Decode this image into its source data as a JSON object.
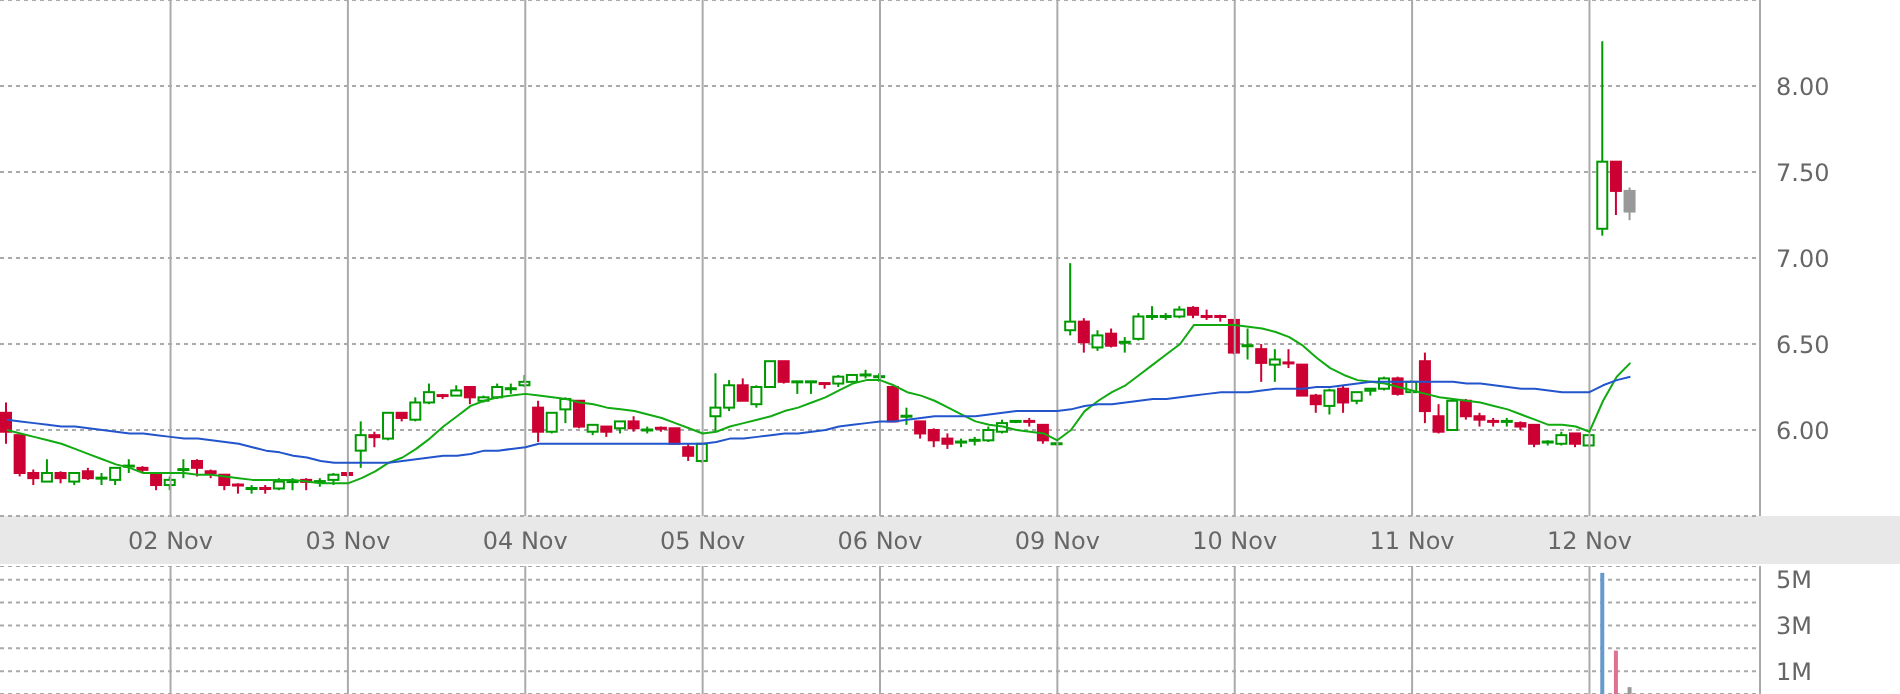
{
  "chart_data": [
    {
      "type": "candlestick",
      "grid": true,
      "categories": [
        null,
        null,
        null,
        null,
        null,
        null,
        null,
        null,
        null,
        null,
        null,
        null,
        "02 Nov",
        null,
        null,
        null,
        null,
        null,
        null,
        null,
        null,
        null,
        null,
        null,
        null,
        "03 Nov",
        null,
        null,
        null,
        null,
        null,
        null,
        null,
        null,
        null,
        null,
        null,
        null,
        "04 Nov",
        null,
        null,
        null,
        null,
        null,
        null,
        null,
        null,
        null,
        null,
        null,
        null,
        "05 Nov",
        null,
        null,
        null,
        null,
        null,
        null,
        null,
        null,
        null,
        null,
        null,
        null,
        "06 Nov",
        null,
        null,
        null,
        null,
        null,
        null,
        null,
        null,
        null,
        null,
        null,
        null,
        "09 Nov",
        null,
        null,
        null,
        null,
        null,
        null,
        null,
        null,
        null,
        null,
        null,
        null,
        "10 Nov",
        null,
        null,
        null,
        null,
        null,
        null,
        null,
        null,
        null,
        null,
        null,
        null,
        "11 Nov",
        null,
        null,
        null,
        null,
        null,
        null,
        null,
        null,
        null,
        null,
        null,
        null,
        "12 Nov",
        null,
        null,
        null,
        null,
        null,
        null,
        null,
        null,
        null,
        null,
        null,
        null
      ],
      "ohlc": [
        [
          6.1,
          6.16,
          5.92,
          5.99
        ],
        [
          5.97,
          5.97,
          5.73,
          5.75
        ],
        [
          5.75,
          5.77,
          5.68,
          5.72
        ],
        [
          5.7,
          5.83,
          5.7,
          5.75
        ],
        [
          5.75,
          5.76,
          5.69,
          5.72
        ],
        [
          5.7,
          5.75,
          5.68,
          5.75
        ],
        [
          5.76,
          5.78,
          5.71,
          5.72
        ],
        [
          5.72,
          5.75,
          5.68,
          5.72
        ],
        [
          5.71,
          5.78,
          5.68,
          5.78
        ],
        [
          5.79,
          5.83,
          5.75,
          5.79
        ],
        [
          5.78,
          5.79,
          5.75,
          5.77
        ],
        [
          5.75,
          5.75,
          5.65,
          5.68
        ],
        [
          5.68,
          5.73,
          5.65,
          5.71
        ],
        [
          5.77,
          5.83,
          5.72,
          5.77
        ],
        [
          5.82,
          5.83,
          5.73,
          5.78
        ],
        [
          5.76,
          5.77,
          5.72,
          5.75
        ],
        [
          5.74,
          5.74,
          5.65,
          5.68
        ],
        [
          5.68,
          5.69,
          5.63,
          5.68
        ],
        [
          5.66,
          5.68,
          5.63,
          5.66
        ],
        [
          5.66,
          5.68,
          5.63,
          5.66
        ],
        [
          5.66,
          5.72,
          5.65,
          5.7
        ],
        [
          5.7,
          5.72,
          5.65,
          5.7
        ],
        [
          5.71,
          5.72,
          5.65,
          5.7
        ],
        [
          5.7,
          5.72,
          5.67,
          5.7
        ],
        [
          5.71,
          5.75,
          5.68,
          5.74
        ],
        [
          5.75,
          5.75,
          5.73,
          5.74
        ],
        [
          5.88,
          6.05,
          5.78,
          5.97
        ],
        [
          5.97,
          5.99,
          5.9,
          5.96
        ],
        [
          5.95,
          6.1,
          5.94,
          6.1
        ],
        [
          6.1,
          6.1,
          6.05,
          6.07
        ],
        [
          6.06,
          6.19,
          6.05,
          6.16
        ],
        [
          6.16,
          6.27,
          6.15,
          6.22
        ],
        [
          6.2,
          6.21,
          6.18,
          6.2
        ],
        [
          6.2,
          6.26,
          6.2,
          6.23
        ],
        [
          6.25,
          6.25,
          6.15,
          6.19
        ],
        [
          6.17,
          6.2,
          6.16,
          6.19
        ],
        [
          6.19,
          6.27,
          6.18,
          6.25
        ],
        [
          6.24,
          6.27,
          6.21,
          6.24
        ],
        [
          6.26,
          6.32,
          6.25,
          6.28
        ],
        [
          6.13,
          6.17,
          5.93,
          5.99
        ],
        [
          5.99,
          6.1,
          5.98,
          6.1
        ],
        [
          6.12,
          6.19,
          6.04,
          6.18
        ],
        [
          6.17,
          6.17,
          6.01,
          6.02
        ],
        [
          5.99,
          6.03,
          5.97,
          6.03
        ],
        [
          6.02,
          6.02,
          5.96,
          5.99
        ],
        [
          6.01,
          6.05,
          5.98,
          6.05
        ],
        [
          6.05,
          6.08,
          5.99,
          6.01
        ],
        [
          6.0,
          6.02,
          5.98,
          6.0
        ],
        [
          6.01,
          6.02,
          5.99,
          6.01
        ],
        [
          6.01,
          6.01,
          5.92,
          5.92
        ],
        [
          5.9,
          5.92,
          5.82,
          5.85
        ],
        [
          5.82,
          5.92,
          5.81,
          5.92
        ],
        [
          6.08,
          6.33,
          5.99,
          6.13
        ],
        [
          6.13,
          6.29,
          6.11,
          6.26
        ],
        [
          6.26,
          6.3,
          6.17,
          6.17
        ],
        [
          6.15,
          6.26,
          6.13,
          6.25
        ],
        [
          6.25,
          6.4,
          6.25,
          6.4
        ],
        [
          6.4,
          6.4,
          6.27,
          6.28
        ],
        [
          6.28,
          6.28,
          6.21,
          6.28
        ],
        [
          6.28,
          6.28,
          6.21,
          6.28
        ],
        [
          6.27,
          6.27,
          6.24,
          6.27
        ],
        [
          6.27,
          6.32,
          6.25,
          6.31
        ],
        [
          6.28,
          6.32,
          6.28,
          6.32
        ],
        [
          6.32,
          6.35,
          6.3,
          6.32
        ],
        [
          6.31,
          6.33,
          6.28,
          6.31
        ],
        [
          6.25,
          6.25,
          6.05,
          6.05
        ],
        [
          6.08,
          6.13,
          6.03,
          6.08
        ],
        [
          6.05,
          6.05,
          5.95,
          5.98
        ],
        [
          6.0,
          6.01,
          5.9,
          5.94
        ],
        [
          5.95,
          5.98,
          5.89,
          5.92
        ],
        [
          5.93,
          5.95,
          5.9,
          5.93
        ],
        [
          5.94,
          5.96,
          5.91,
          5.94
        ],
        [
          5.94,
          6.02,
          5.93,
          6.0
        ],
        [
          5.99,
          6.06,
          5.98,
          6.04
        ],
        [
          6.05,
          6.05,
          6.04,
          6.05
        ],
        [
          6.05,
          6.07,
          6.02,
          6.05
        ],
        [
          6.03,
          6.03,
          5.92,
          5.94
        ],
        [
          5.92,
          5.93,
          5.91,
          5.92
        ],
        [
          6.58,
          6.97,
          6.55,
          6.63
        ],
        [
          6.63,
          6.65,
          6.45,
          6.51
        ],
        [
          6.48,
          6.58,
          6.46,
          6.55
        ],
        [
          6.56,
          6.59,
          6.48,
          6.49
        ],
        [
          6.51,
          6.54,
          6.45,
          6.51
        ],
        [
          6.53,
          6.68,
          6.52,
          6.66
        ],
        [
          6.66,
          6.72,
          6.64,
          6.66
        ],
        [
          6.66,
          6.68,
          6.64,
          6.66
        ],
        [
          6.66,
          6.72,
          6.65,
          6.7
        ],
        [
          6.71,
          6.72,
          6.65,
          6.67
        ],
        [
          6.66,
          6.7,
          6.64,
          6.66
        ],
        [
          6.66,
          6.67,
          6.63,
          6.66
        ],
        [
          6.64,
          6.64,
          6.44,
          6.45
        ],
        [
          6.49,
          6.59,
          6.41,
          6.49
        ],
        [
          6.47,
          6.5,
          6.28,
          6.39
        ],
        [
          6.38,
          6.47,
          6.28,
          6.41
        ],
        [
          6.39,
          6.47,
          6.36,
          6.39
        ],
        [
          6.38,
          6.38,
          6.2,
          6.2
        ],
        [
          6.2,
          6.21,
          6.1,
          6.15
        ],
        [
          6.14,
          6.24,
          6.09,
          6.23
        ],
        [
          6.24,
          6.26,
          6.1,
          6.16
        ],
        [
          6.17,
          6.22,
          6.15,
          6.22
        ],
        [
          6.23,
          6.24,
          6.2,
          6.24
        ],
        [
          6.24,
          6.31,
          6.23,
          6.3
        ],
        [
          6.3,
          6.31,
          6.2,
          6.21
        ],
        [
          6.22,
          6.29,
          6.22,
          6.28
        ],
        [
          6.4,
          6.45,
          6.04,
          6.11
        ],
        [
          6.08,
          6.15,
          5.98,
          5.99
        ],
        [
          6.0,
          6.18,
          6.0,
          6.17
        ],
        [
          6.17,
          6.18,
          6.06,
          6.08
        ],
        [
          6.08,
          6.1,
          6.02,
          6.06
        ],
        [
          6.05,
          6.07,
          6.02,
          6.05
        ],
        [
          6.05,
          6.07,
          6.02,
          6.05
        ],
        [
          6.04,
          6.05,
          6.0,
          6.02
        ],
        [
          6.03,
          6.03,
          5.9,
          5.92
        ],
        [
          5.93,
          5.94,
          5.91,
          5.93
        ],
        [
          5.92,
          5.99,
          5.91,
          5.97
        ],
        [
          5.98,
          5.98,
          5.9,
          5.92
        ],
        [
          5.91,
          5.97,
          5.91,
          5.97
        ],
        [
          7.17,
          8.26,
          7.13,
          7.56
        ],
        [
          7.56,
          7.56,
          7.25,
          7.39
        ],
        [
          7.39,
          7.41,
          7.22,
          7.27
        ],
        null,
        null,
        null,
        null,
        null,
        null,
        null,
        null,
        null
      ],
      "colors": [
        "#cc0033",
        "#cc0033",
        "#cc0033",
        "#009900",
        "#cc0033",
        "#009900",
        "#cc0033",
        "#009900",
        "#009900",
        "#009900",
        "#cc0033",
        "#cc0033",
        "#009900",
        "#009900",
        "#cc0033",
        "#cc0033",
        "#cc0033",
        "#cc0033",
        "#009900",
        "#cc0033",
        "#009900",
        "#009900",
        "#cc0033",
        "#009900",
        "#009900",
        "#cc0033",
        "#009900",
        "#cc0033",
        "#009900",
        "#cc0033",
        "#009900",
        "#009900",
        "#cc0033",
        "#009900",
        "#cc0033",
        "#009900",
        "#009900",
        "#009900",
        "#009900",
        "#cc0033",
        "#009900",
        "#009900",
        "#cc0033",
        "#009900",
        "#cc0033",
        "#009900",
        "#cc0033",
        "#009900",
        "#cc0033",
        "#cc0033",
        "#cc0033",
        "#009900",
        "#009900",
        "#009900",
        "#cc0033",
        "#009900",
        "#009900",
        "#cc0033",
        "#009900",
        "#009900",
        "#cc0033",
        "#009900",
        "#009900",
        "#009900",
        "#009900",
        "#cc0033",
        "#009900",
        "#cc0033",
        "#cc0033",
        "#cc0033",
        "#009900",
        "#009900",
        "#009900",
        "#009900",
        "#009900",
        "#cc0033",
        "#cc0033",
        "#009900",
        "#009900",
        "#cc0033",
        "#009900",
        "#cc0033",
        "#009900",
        "#009900",
        "#009900",
        "#009900",
        "#009900",
        "#cc0033",
        "#cc0033",
        "#cc0033",
        "#cc0033",
        "#009900",
        "#cc0033",
        "#009900",
        "#cc0033",
        "#cc0033",
        "#cc0033",
        "#009900",
        "#cc0033",
        "#009900",
        "#009900",
        "#009900",
        "#cc0033",
        "#009900",
        "#cc0033",
        "#cc0033",
        "#009900",
        "#cc0033",
        "#cc0033",
        "#cc0033",
        "#009900",
        "#cc0033",
        "#cc0033",
        "#009900",
        "#009900",
        "#cc0033",
        "#009900",
        "#009900",
        "#cc0033",
        "#999999",
        null,
        null,
        null,
        null,
        null,
        null,
        null,
        null,
        null
      ],
      "series": [
        {
          "type": "line",
          "color": "#11aa11",
          "values": [
            6.0,
            5.98,
            5.96,
            5.94,
            5.92,
            5.89,
            5.86,
            5.83,
            5.8,
            5.78,
            5.75,
            5.75,
            5.75,
            5.75,
            5.74,
            5.74,
            5.73,
            5.72,
            5.71,
            5.71,
            5.71,
            5.71,
            5.7,
            5.69,
            5.69,
            5.69,
            5.72,
            5.76,
            5.81,
            5.84,
            5.89,
            5.95,
            6.02,
            6.08,
            6.14,
            6.17,
            6.19,
            6.2,
            6.21,
            6.2,
            6.19,
            6.18,
            6.16,
            6.15,
            6.13,
            6.12,
            6.11,
            6.09,
            6.07,
            6.04,
            6.01,
            5.98,
            5.99,
            6.02,
            6.04,
            6.06,
            6.08,
            6.11,
            6.13,
            6.16,
            6.19,
            6.23,
            6.27,
            6.29,
            6.29,
            6.26,
            6.22,
            6.2,
            6.17,
            6.13,
            6.09,
            6.05,
            6.03,
            6.02,
            6.0,
            5.99,
            5.98,
            5.94,
            6.0,
            6.11,
            6.17,
            6.22,
            6.26,
            6.32,
            6.38,
            6.44,
            6.5,
            6.61,
            6.61,
            6.61,
            6.61,
            6.6,
            6.59,
            6.57,
            6.54,
            6.49,
            6.42,
            6.36,
            6.32,
            6.29,
            6.28,
            6.27,
            6.25,
            6.23,
            6.21,
            6.19,
            6.18,
            6.17,
            6.16,
            6.14,
            6.12,
            6.09,
            6.06,
            6.03,
            6.03,
            6.02,
            5.99,
            6.17,
            6.31,
            6.39,
            null,
            null,
            null,
            null,
            null,
            null,
            null,
            null,
            null
          ]
        },
        {
          "type": "line",
          "color": "#2255cc",
          "values": [
            6.06,
            6.05,
            6.04,
            6.03,
            6.02,
            6.02,
            6.01,
            6.0,
            5.99,
            5.98,
            5.98,
            5.97,
            5.96,
            5.95,
            5.95,
            5.94,
            5.93,
            5.92,
            5.9,
            5.88,
            5.87,
            5.85,
            5.84,
            5.82,
            5.81,
            5.81,
            5.81,
            5.81,
            5.81,
            5.82,
            5.83,
            5.84,
            5.85,
            5.85,
            5.86,
            5.88,
            5.88,
            5.89,
            5.9,
            5.92,
            5.92,
            5.92,
            5.92,
            5.92,
            5.92,
            5.92,
            5.92,
            5.92,
            5.92,
            5.92,
            5.92,
            5.92,
            5.93,
            5.95,
            5.95,
            5.96,
            5.97,
            5.98,
            5.98,
            5.99,
            6.0,
            6.02,
            6.03,
            6.04,
            6.05,
            6.05,
            6.06,
            6.07,
            6.08,
            6.08,
            6.08,
            6.08,
            6.09,
            6.1,
            6.11,
            6.11,
            6.11,
            6.11,
            6.12,
            6.14,
            6.15,
            6.15,
            6.16,
            6.17,
            6.18,
            6.18,
            6.19,
            6.2,
            6.21,
            6.22,
            6.22,
            6.22,
            6.23,
            6.24,
            6.24,
            6.24,
            6.25,
            6.25,
            6.26,
            6.27,
            6.28,
            6.28,
            6.28,
            6.28,
            6.28,
            6.28,
            6.28,
            6.27,
            6.27,
            6.26,
            6.25,
            6.24,
            6.24,
            6.23,
            6.22,
            6.22,
            6.22,
            6.26,
            6.29,
            6.31,
            null,
            null,
            null,
            null,
            null,
            null,
            null,
            null,
            null
          ]
        }
      ],
      "ylim": [
        5.5,
        8.5
      ],
      "yticks": [
        {
          "value": 6,
          "label": "6.00"
        },
        {
          "value": 6.5,
          "label": "6.50"
        },
        {
          "value": 7,
          "label": "7.00"
        },
        {
          "value": 7.5,
          "label": "7.50"
        },
        {
          "value": 8,
          "label": "8.00"
        }
      ]
    },
    {
      "type": "bar",
      "grid": true,
      "tick_labels": "y",
      "categories": [
        null,
        null,
        null,
        null,
        null,
        null,
        null,
        null,
        null,
        null,
        null,
        null,
        null,
        null,
        null,
        null,
        null,
        null,
        null,
        null,
        null,
        null,
        null,
        null,
        null,
        null,
        null,
        null,
        null,
        null,
        null,
        null,
        null,
        null,
        null,
        null,
        null,
        null,
        null,
        null,
        null,
        null,
        null,
        null,
        null,
        null,
        null,
        null,
        null,
        null,
        null,
        null,
        null,
        null,
        null,
        null,
        null,
        null,
        null,
        null,
        null,
        null,
        null,
        null,
        null,
        null,
        null,
        null,
        null,
        null,
        null,
        null,
        null,
        null,
        null,
        null,
        null,
        null,
        null,
        null,
        null,
        null,
        null,
        null,
        null,
        null,
        null,
        null,
        null,
        null,
        null,
        null,
        null,
        null,
        null,
        null,
        null,
        null,
        null,
        null,
        null,
        null,
        null,
        null,
        null,
        null,
        null,
        null,
        null,
        null,
        null,
        null,
        null,
        null,
        null,
        null,
        null,
        null,
        null,
        null,
        null,
        null,
        null,
        null,
        null,
        null,
        null,
        null,
        null
      ],
      "values": [
        null,
        null,
        null,
        null,
        null,
        null,
        null,
        null,
        null,
        null,
        null,
        null,
        null,
        null,
        null,
        null,
        null,
        null,
        null,
        null,
        null,
        null,
        null,
        null,
        null,
        null,
        null,
        null,
        null,
        null,
        null,
        null,
        null,
        null,
        null,
        null,
        null,
        null,
        null,
        null,
        null,
        null,
        null,
        null,
        null,
        null,
        null,
        null,
        null,
        null,
        null,
        null,
        null,
        null,
        null,
        null,
        null,
        null,
        null,
        null,
        null,
        null,
        null,
        null,
        null,
        null,
        null,
        null,
        null,
        null,
        null,
        null,
        null,
        null,
        null,
        null,
        null,
        null,
        null,
        null,
        null,
        null,
        null,
        null,
        null,
        null,
        null,
        null,
        null,
        null,
        null,
        null,
        null,
        null,
        null,
        null,
        null,
        null,
        null,
        null,
        null,
        null,
        null,
        null,
        null,
        null,
        null,
        null,
        null,
        null,
        null,
        null,
        null,
        null,
        null,
        null,
        null,
        5.3,
        1.9,
        0.3,
        null,
        null,
        null,
        null,
        null,
        null,
        null,
        null,
        null
      ],
      "colors": [
        null,
        null,
        null,
        null,
        null,
        null,
        null,
        null,
        null,
        null,
        null,
        null,
        null,
        null,
        null,
        null,
        null,
        null,
        null,
        null,
        null,
        null,
        null,
        null,
        null,
        null,
        null,
        null,
        null,
        null,
        null,
        null,
        null,
        null,
        null,
        null,
        null,
        null,
        null,
        null,
        null,
        null,
        null,
        null,
        null,
        null,
        null,
        null,
        null,
        null,
        null,
        null,
        null,
        null,
        null,
        null,
        null,
        null,
        null,
        null,
        null,
        null,
        null,
        null,
        null,
        null,
        null,
        null,
        null,
        null,
        null,
        null,
        null,
        null,
        null,
        null,
        null,
        null,
        null,
        null,
        null,
        null,
        null,
        null,
        null,
        null,
        null,
        null,
        null,
        null,
        null,
        null,
        null,
        null,
        null,
        null,
        null,
        null,
        null,
        null,
        null,
        null,
        null,
        null,
        null,
        null,
        null,
        null,
        null,
        null,
        null,
        null,
        null,
        null,
        null,
        null,
        null,
        "#6699cc",
        "#e07090",
        "#999999",
        null,
        null,
        null,
        null,
        null,
        null,
        null,
        null,
        null
      ],
      "ylim": [
        0,
        5.6
      ],
      "yticks": [
        {
          "value": 1,
          "label": "1M"
        },
        {
          "value": 2,
          "label": null
        },
        {
          "value": 3,
          "label": "3M"
        },
        {
          "value": 4,
          "label": null
        },
        {
          "value": 5,
          "label": "5M"
        }
      ]
    }
  ]
}
